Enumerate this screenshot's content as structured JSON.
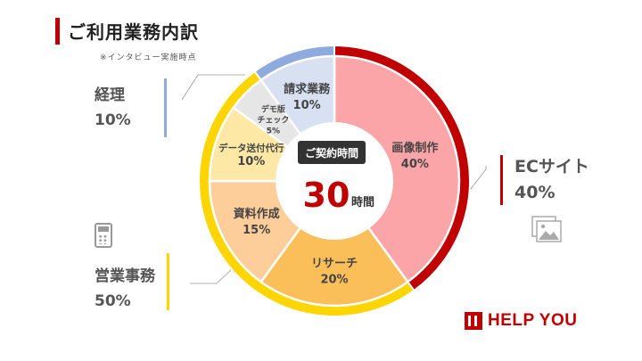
{
  "title": "ご利用業務内訳",
  "note": "※インタビュー実施時点",
  "center": {
    "badge": "ご契約時間",
    "hours": "30",
    "unit": "時間"
  },
  "brand": "HELP YOU",
  "categories": [
    {
      "name": "ECサイト",
      "percent": "40%"
    },
    {
      "name": "経理",
      "percent": "10%"
    },
    {
      "name": "営業事務",
      "percent": "50%"
    }
  ],
  "chart_data": {
    "type": "pie",
    "title": "ご利用業務内訳",
    "total_hours": 30,
    "inner_ring": [
      {
        "label": "画像制作",
        "value": 40,
        "display": "40%",
        "color": "#fca5a8"
      },
      {
        "label": "リサーチ",
        "value": 20,
        "display": "20%",
        "color": "#fbbf59"
      },
      {
        "label": "資料作成",
        "value": 15,
        "display": "15%",
        "color": "#fdcd9a"
      },
      {
        "label": "データ送付代行",
        "value": 10,
        "display": "10%",
        "color": "#fde9a5"
      },
      {
        "label": "デモ版チェック",
        "value": 5,
        "display": "5%",
        "color": "#e6e6e6"
      },
      {
        "label": "請求業務",
        "value": 10,
        "display": "10%",
        "color": "#d8e1f2"
      }
    ],
    "outer_ring": [
      {
        "label": "ECサイト",
        "value": 40,
        "color": "#c00000"
      },
      {
        "label": "営業事務",
        "value": 50,
        "color": "#ffd500"
      },
      {
        "label": "経理",
        "value": 10,
        "color": "#8faadc"
      }
    ]
  }
}
